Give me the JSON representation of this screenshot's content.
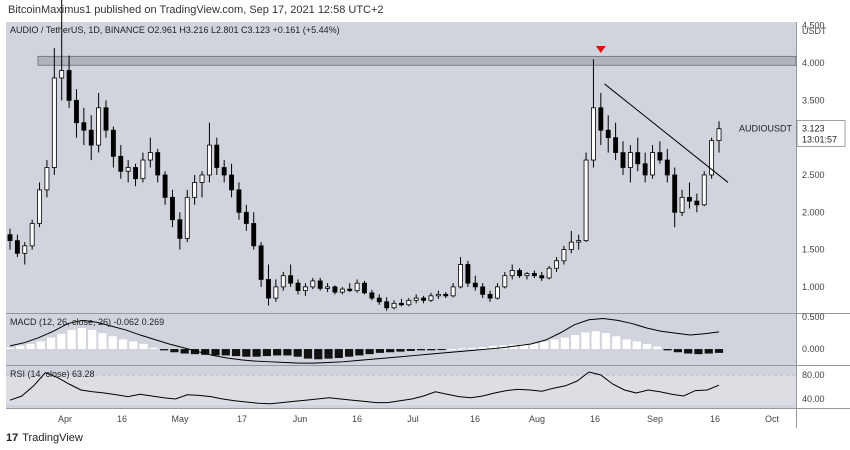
{
  "header": {
    "published": "BitcoinMaximus1 published on TradingView.com, Sep 17, 2021 12:58 UTC+2"
  },
  "legend": {
    "symbol": "AUDIO / TetherUS, 1D, BINANCE",
    "o_label": "O",
    "o": "2.961",
    "h_label": "H",
    "h": "3.216",
    "l_label": "L",
    "l": "2.801",
    "c_label": "C",
    "c": "3.123",
    "change": "+0.161 (+5.44%)"
  },
  "price_axis": {
    "currency": "USDT",
    "ticks": [
      "4.500",
      "4.000",
      "3.500",
      "3.000",
      "2.500",
      "2.000",
      "1.500",
      "1.000"
    ]
  },
  "last_price": {
    "symbol": "AUDIOUSDT",
    "price": "3.123",
    "countdown": "13:01:57"
  },
  "macd": {
    "label": "MACD (12, 26, close, 26)",
    "v1": "-0.062",
    "v2": "0.269",
    "ticks": [
      "0.500",
      "0.000"
    ]
  },
  "rsi": {
    "label": "RSI (14, close)",
    "value": "63.28",
    "ticks": [
      "80.00",
      "40.00"
    ]
  },
  "time_axis": [
    "Apr",
    "16",
    "May",
    "17",
    "Jun",
    "16",
    "Jul",
    "16",
    "Aug",
    "16",
    "Sep",
    "16",
    "Oct"
  ],
  "footer": {
    "brand": "TradingView"
  },
  "colors": {
    "pane": "#d1d4dc",
    "up": "#ffffff",
    "down": "#000000",
    "resistance": "#b0b3bc",
    "arrow": "#e01010"
  },
  "chart_data": {
    "type": "candlestick",
    "ylim": [
      0.65,
      4.55
    ],
    "resistance_zone": [
      3.97,
      4.09
    ],
    "trendline": {
      "from": {
        "date": "Aug 16",
        "price": 3.72
      },
      "to": {
        "date": "Sep 19",
        "price": 2.4
      }
    },
    "marker": {
      "date": "Aug 16",
      "type": "down-arrow"
    },
    "series": [
      {
        "date": "Mar 12",
        "o": 1.7,
        "h": 1.78,
        "l": 1.5,
        "c": 1.62
      },
      {
        "date": "Mar 14",
        "o": 1.62,
        "h": 1.7,
        "l": 1.4,
        "c": 1.45
      },
      {
        "date": "Mar 16",
        "o": 1.45,
        "h": 1.6,
        "l": 1.3,
        "c": 1.55
      },
      {
        "date": "Mar 18",
        "o": 1.55,
        "h": 1.9,
        "l": 1.5,
        "c": 1.85
      },
      {
        "date": "Mar 20",
        "o": 1.85,
        "h": 2.4,
        "l": 1.8,
        "c": 2.3
      },
      {
        "date": "Mar 22",
        "o": 2.3,
        "h": 2.7,
        "l": 2.2,
        "c": 2.6
      },
      {
        "date": "Mar 24",
        "o": 2.6,
        "h": 4.2,
        "l": 2.5,
        "c": 3.8
      },
      {
        "date": "Mar 26",
        "o": 3.8,
        "h": 4.85,
        "l": 3.5,
        "c": 3.9
      },
      {
        "date": "Mar 28",
        "o": 3.9,
        "h": 4.1,
        "l": 3.4,
        "c": 3.5
      },
      {
        "date": "Mar 30",
        "o": 3.5,
        "h": 3.65,
        "l": 3.0,
        "c": 3.2
      },
      {
        "date": "Apr 1",
        "o": 3.2,
        "h": 3.4,
        "l": 2.9,
        "c": 3.1
      },
      {
        "date": "Apr 3",
        "o": 3.1,
        "h": 3.3,
        "l": 2.7,
        "c": 2.9
      },
      {
        "date": "Apr 5",
        "o": 2.9,
        "h": 3.6,
        "l": 2.8,
        "c": 3.4
      },
      {
        "date": "Apr 7",
        "o": 3.4,
        "h": 3.5,
        "l": 3.0,
        "c": 3.1
      },
      {
        "date": "Apr 9",
        "o": 3.1,
        "h": 3.15,
        "l": 2.6,
        "c": 2.75
      },
      {
        "date": "Apr 11",
        "o": 2.75,
        "h": 2.9,
        "l": 2.45,
        "c": 2.55
      },
      {
        "date": "Apr 13",
        "o": 2.55,
        "h": 2.7,
        "l": 2.4,
        "c": 2.6
      },
      {
        "date": "Apr 15",
        "o": 2.6,
        "h": 2.65,
        "l": 2.35,
        "c": 2.45
      },
      {
        "date": "Apr 17",
        "o": 2.45,
        "h": 2.8,
        "l": 2.4,
        "c": 2.7
      },
      {
        "date": "Apr 19",
        "o": 2.7,
        "h": 3.0,
        "l": 2.6,
        "c": 2.8
      },
      {
        "date": "Apr 21",
        "o": 2.8,
        "h": 2.85,
        "l": 2.4,
        "c": 2.5
      },
      {
        "date": "Apr 23",
        "o": 2.5,
        "h": 2.55,
        "l": 2.1,
        "c": 2.2
      },
      {
        "date": "Apr 25",
        "o": 2.2,
        "h": 2.3,
        "l": 1.8,
        "c": 1.9
      },
      {
        "date": "Apr 27",
        "o": 1.9,
        "h": 2.0,
        "l": 1.5,
        "c": 1.65
      },
      {
        "date": "Apr 29",
        "o": 1.65,
        "h": 2.3,
        "l": 1.6,
        "c": 2.2
      },
      {
        "date": "May 1",
        "o": 2.2,
        "h": 2.5,
        "l": 2.1,
        "c": 2.4
      },
      {
        "date": "May 3",
        "o": 2.4,
        "h": 2.55,
        "l": 2.2,
        "c": 2.5
      },
      {
        "date": "May 5",
        "o": 2.5,
        "h": 3.2,
        "l": 2.4,
        "c": 2.9
      },
      {
        "date": "May 7",
        "o": 2.9,
        "h": 3.0,
        "l": 2.5,
        "c": 2.6
      },
      {
        "date": "May 9",
        "o": 2.6,
        "h": 2.7,
        "l": 2.4,
        "c": 2.5
      },
      {
        "date": "May 11",
        "o": 2.5,
        "h": 2.65,
        "l": 2.2,
        "c": 2.3
      },
      {
        "date": "May 13",
        "o": 2.3,
        "h": 2.4,
        "l": 1.9,
        "c": 2.0
      },
      {
        "date": "May 15",
        "o": 2.0,
        "h": 2.1,
        "l": 1.75,
        "c": 1.85
      },
      {
        "date": "May 17",
        "o": 1.85,
        "h": 2.0,
        "l": 1.5,
        "c": 1.55
      },
      {
        "date": "May 19",
        "o": 1.55,
        "h": 1.6,
        "l": 1.0,
        "c": 1.1
      },
      {
        "date": "May 21",
        "o": 1.1,
        "h": 1.3,
        "l": 0.75,
        "c": 0.85
      },
      {
        "date": "May 23",
        "o": 0.85,
        "h": 1.1,
        "l": 0.8,
        "c": 1.0
      },
      {
        "date": "May 25",
        "o": 1.0,
        "h": 1.2,
        "l": 0.95,
        "c": 1.15
      },
      {
        "date": "May 27",
        "o": 1.15,
        "h": 1.3,
        "l": 1.0,
        "c": 1.05
      },
      {
        "date": "May 29",
        "o": 1.05,
        "h": 1.1,
        "l": 0.9,
        "c": 0.95
      },
      {
        "date": "May 31",
        "o": 0.95,
        "h": 1.05,
        "l": 0.88,
        "c": 1.0
      },
      {
        "date": "Jun 2",
        "o": 1.0,
        "h": 1.12,
        "l": 0.97,
        "c": 1.08
      },
      {
        "date": "Jun 4",
        "o": 1.08,
        "h": 1.12,
        "l": 0.95,
        "c": 0.98
      },
      {
        "date": "Jun 6",
        "o": 0.98,
        "h": 1.05,
        "l": 0.93,
        "c": 1.0
      },
      {
        "date": "Jun 8",
        "o": 1.0,
        "h": 1.02,
        "l": 0.9,
        "c": 0.93
      },
      {
        "date": "Jun 10",
        "o": 0.93,
        "h": 1.0,
        "l": 0.9,
        "c": 0.97
      },
      {
        "date": "Jun 12",
        "o": 0.97,
        "h": 1.05,
        "l": 0.93,
        "c": 0.95
      },
      {
        "date": "Jun 14",
        "o": 0.95,
        "h": 1.1,
        "l": 0.92,
        "c": 1.05
      },
      {
        "date": "Jun 16",
        "o": 1.05,
        "h": 1.08,
        "l": 0.9,
        "c": 0.92
      },
      {
        "date": "Jun 18",
        "o": 0.92,
        "h": 0.96,
        "l": 0.82,
        "c": 0.85
      },
      {
        "date": "Jun 20",
        "o": 0.85,
        "h": 0.9,
        "l": 0.76,
        "c": 0.8
      },
      {
        "date": "Jun 22",
        "o": 0.8,
        "h": 0.86,
        "l": 0.68,
        "c": 0.72
      },
      {
        "date": "Jun 24",
        "o": 0.72,
        "h": 0.82,
        "l": 0.7,
        "c": 0.78
      },
      {
        "date": "Jun 26",
        "o": 0.78,
        "h": 0.84,
        "l": 0.74,
        "c": 0.76
      },
      {
        "date": "Jun 28",
        "o": 0.76,
        "h": 0.85,
        "l": 0.74,
        "c": 0.82
      },
      {
        "date": "Jun 30",
        "o": 0.82,
        "h": 0.9,
        "l": 0.78,
        "c": 0.85
      },
      {
        "date": "Jul 2",
        "o": 0.85,
        "h": 0.88,
        "l": 0.78,
        "c": 0.82
      },
      {
        "date": "Jul 4",
        "o": 0.82,
        "h": 0.92,
        "l": 0.8,
        "c": 0.88
      },
      {
        "date": "Jul 6",
        "o": 0.88,
        "h": 0.95,
        "l": 0.84,
        "c": 0.9
      },
      {
        "date": "Jul 8",
        "o": 0.9,
        "h": 0.93,
        "l": 0.85,
        "c": 0.88
      },
      {
        "date": "Jul 10",
        "o": 0.88,
        "h": 1.05,
        "l": 0.86,
        "c": 1.0
      },
      {
        "date": "Jul 12",
        "o": 1.0,
        "h": 1.4,
        "l": 0.98,
        "c": 1.3
      },
      {
        "date": "Jul 14",
        "o": 1.3,
        "h": 1.35,
        "l": 1.0,
        "c": 1.05
      },
      {
        "date": "Jul 16",
        "o": 1.05,
        "h": 1.15,
        "l": 0.95,
        "c": 1.0
      },
      {
        "date": "Jul 18",
        "o": 1.0,
        "h": 1.05,
        "l": 0.85,
        "c": 0.9
      },
      {
        "date": "Jul 20",
        "o": 0.9,
        "h": 0.95,
        "l": 0.8,
        "c": 0.85
      },
      {
        "date": "Jul 22",
        "o": 0.85,
        "h": 1.05,
        "l": 0.83,
        "c": 1.0
      },
      {
        "date": "Jul 24",
        "o": 1.0,
        "h": 1.2,
        "l": 0.98,
        "c": 1.15
      },
      {
        "date": "Jul 26",
        "o": 1.15,
        "h": 1.3,
        "l": 1.1,
        "c": 1.22
      },
      {
        "date": "Jul 28",
        "o": 1.22,
        "h": 1.25,
        "l": 1.12,
        "c": 1.15
      },
      {
        "date": "Jul 30",
        "o": 1.15,
        "h": 1.2,
        "l": 1.1,
        "c": 1.18
      },
      {
        "date": "Aug 1",
        "o": 1.18,
        "h": 1.22,
        "l": 1.12,
        "c": 1.15
      },
      {
        "date": "Aug 3",
        "o": 1.15,
        "h": 1.2,
        "l": 1.08,
        "c": 1.12
      },
      {
        "date": "Aug 5",
        "o": 1.12,
        "h": 1.28,
        "l": 1.1,
        "c": 1.25
      },
      {
        "date": "Aug 7",
        "o": 1.25,
        "h": 1.4,
        "l": 1.2,
        "c": 1.35
      },
      {
        "date": "Aug 9",
        "o": 1.35,
        "h": 1.55,
        "l": 1.3,
        "c": 1.5
      },
      {
        "date": "Aug 11",
        "o": 1.5,
        "h": 1.75,
        "l": 1.45,
        "c": 1.6
      },
      {
        "date": "Aug 13",
        "o": 1.6,
        "h": 1.7,
        "l": 1.5,
        "c": 1.62
      },
      {
        "date": "Aug 15",
        "o": 1.62,
        "h": 2.8,
        "l": 1.6,
        "c": 2.7
      },
      {
        "date": "Aug 17",
        "o": 2.7,
        "h": 4.05,
        "l": 2.6,
        "c": 3.4
      },
      {
        "date": "Aug 19",
        "o": 3.4,
        "h": 3.6,
        "l": 2.9,
        "c": 3.1
      },
      {
        "date": "Aug 21",
        "o": 3.1,
        "h": 3.3,
        "l": 2.8,
        "c": 3.0
      },
      {
        "date": "Aug 23",
        "o": 3.0,
        "h": 3.2,
        "l": 2.7,
        "c": 2.8
      },
      {
        "date": "Aug 25",
        "o": 2.8,
        "h": 2.95,
        "l": 2.5,
        "c": 2.6
      },
      {
        "date": "Aug 27",
        "o": 2.6,
        "h": 2.9,
        "l": 2.4,
        "c": 2.8
      },
      {
        "date": "Aug 29",
        "o": 2.8,
        "h": 3.0,
        "l": 2.55,
        "c": 2.65
      },
      {
        "date": "Aug 31",
        "o": 2.65,
        "h": 2.8,
        "l": 2.4,
        "c": 2.5
      },
      {
        "date": "Sep 2",
        "o": 2.5,
        "h": 2.9,
        "l": 2.45,
        "c": 2.8
      },
      {
        "date": "Sep 4",
        "o": 2.8,
        "h": 2.95,
        "l": 2.65,
        "c": 2.7
      },
      {
        "date": "Sep 6",
        "o": 2.7,
        "h": 2.85,
        "l": 2.4,
        "c": 2.5
      },
      {
        "date": "Sep 8",
        "o": 2.5,
        "h": 2.6,
        "l": 1.8,
        "c": 2.0
      },
      {
        "date": "Sep 10",
        "o": 2.0,
        "h": 2.3,
        "l": 1.95,
        "c": 2.2
      },
      {
        "date": "Sep 12",
        "o": 2.2,
        "h": 2.4,
        "l": 2.05,
        "c": 2.15
      },
      {
        "date": "Sep 14",
        "o": 2.15,
        "h": 2.25,
        "l": 2.0,
        "c": 2.1
      },
      {
        "date": "Sep 15",
        "o": 2.1,
        "h": 2.55,
        "l": 2.08,
        "c": 2.5
      },
      {
        "date": "Sep 16",
        "o": 2.5,
        "h": 3.0,
        "l": 2.45,
        "c": 2.96
      },
      {
        "date": "Sep 17",
        "o": 2.96,
        "h": 3.22,
        "l": 2.8,
        "c": 3.12
      }
    ],
    "macd_hist": [
      0.02,
      0.05,
      0.08,
      0.12,
      0.18,
      0.24,
      0.3,
      0.33,
      0.3,
      0.25,
      0.2,
      0.15,
      0.12,
      0.08,
      0.02,
      -0.02,
      -0.05,
      -0.07,
      -0.08,
      -0.09,
      -0.1,
      -0.1,
      -0.11,
      -0.12,
      -0.12,
      -0.11,
      -0.1,
      -0.1,
      -0.12,
      -0.15,
      -0.16,
      -0.15,
      -0.14,
      -0.12,
      -0.1,
      -0.08,
      -0.06,
      -0.05,
      -0.04,
      -0.03,
      -0.02,
      -0.02,
      -0.01,
      0.0,
      0.01,
      0.02,
      0.03,
      0.05,
      0.06,
      0.07,
      0.08,
      0.09,
      0.12,
      0.15,
      0.18,
      0.22,
      0.26,
      0.28,
      0.25,
      0.2,
      0.15,
      0.12,
      0.08,
      0.04,
      -0.02,
      -0.05,
      -0.07,
      -0.08,
      -0.07,
      -0.06
    ],
    "macd_line": [
      0.05,
      0.1,
      0.18,
      0.28,
      0.4,
      0.45,
      0.42,
      0.36,
      0.3,
      0.22,
      0.15,
      0.08,
      0.02,
      -0.04,
      -0.1,
      -0.14,
      -0.17,
      -0.19,
      -0.2,
      -0.21,
      -0.22,
      -0.22,
      -0.21,
      -0.2,
      -0.18,
      -0.16,
      -0.14,
      -0.12,
      -0.1,
      -0.08,
      -0.06,
      -0.04,
      -0.02,
      0.0,
      0.02,
      0.05,
      0.08,
      0.14,
      0.25,
      0.38,
      0.46,
      0.48,
      0.45,
      0.4,
      0.33,
      0.28,
      0.25,
      0.22,
      0.24,
      0.27
    ],
    "rsi_values": [
      38,
      45,
      62,
      84,
      76,
      65,
      55,
      52,
      50,
      47,
      44,
      48,
      45,
      42,
      40,
      47,
      46,
      44,
      40,
      37,
      35,
      33,
      32,
      34,
      36,
      38,
      40,
      42,
      40,
      38,
      36,
      34,
      34,
      37,
      40,
      45,
      52,
      48,
      44,
      42,
      45,
      50,
      54,
      56,
      55,
      53,
      58,
      62,
      70,
      85,
      80,
      65,
      55,
      50,
      55,
      52,
      48,
      45,
      54,
      55,
      63
    ]
  }
}
